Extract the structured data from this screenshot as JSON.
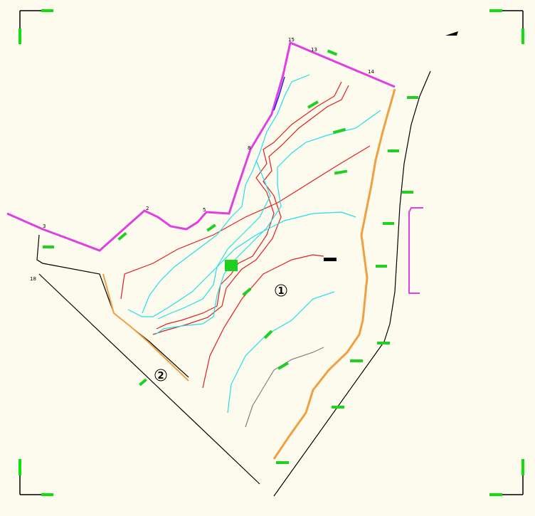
{
  "zones": [
    "1",
    "2"
  ],
  "points": [
    "15",
    "13",
    "14",
    "8",
    "2",
    "5",
    "3",
    "18"
  ]
}
